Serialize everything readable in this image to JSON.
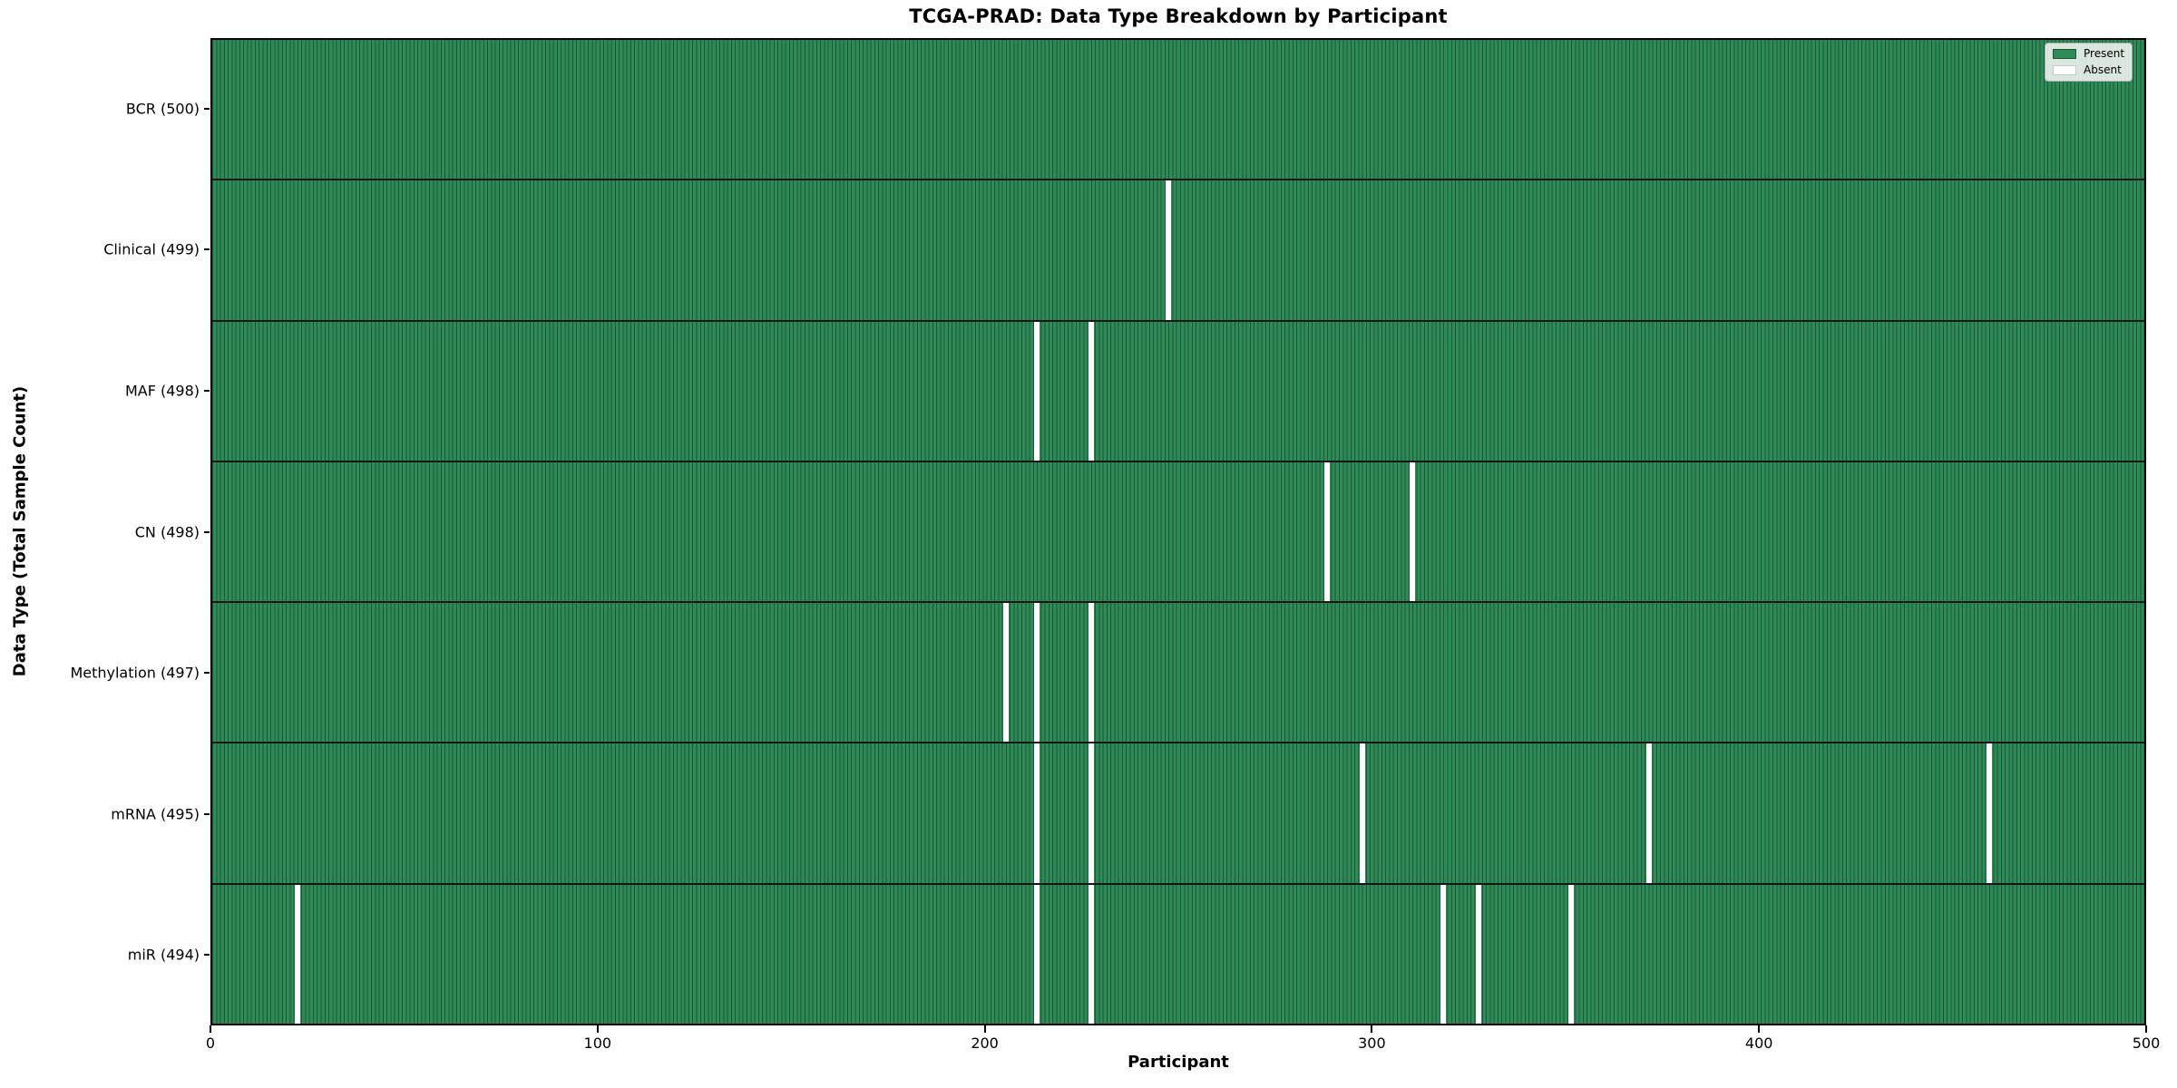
{
  "chart_data": {
    "type": "heatmap",
    "title": "TCGA-PRAD: Data Type Breakdown by Participant",
    "xlabel": "Participant",
    "ylabel": "Data Type (Total Sample Count)",
    "x_range": [
      0,
      500
    ],
    "x_ticks": [
      "0",
      "100",
      "200",
      "300",
      "400",
      "500"
    ],
    "n_participants": 500,
    "grid": false,
    "legend_position": "upper right",
    "legend": [
      {
        "label": "Present",
        "color": "#2e8b57"
      },
      {
        "label": "Absent",
        "color": "#ffffff"
      }
    ],
    "colors": {
      "present_fill": "#2e8b57",
      "cell_edge": "#1c5837",
      "absent_fill": "#ffffff",
      "row_separator": "#161616",
      "spine": "#000000"
    },
    "rows": [
      {
        "key": "bcr",
        "label": "BCR (500)",
        "present_count": 500,
        "absent_participants": []
      },
      {
        "key": "clinical",
        "label": "Clinical (499)",
        "present_count": 499,
        "absent_participants": [
          247
        ]
      },
      {
        "key": "maf",
        "label": "MAF (498)",
        "present_count": 498,
        "absent_participants": [
          213,
          227
        ]
      },
      {
        "key": "cn",
        "label": "CN (498)",
        "present_count": 498,
        "absent_participants": [
          288,
          310
        ]
      },
      {
        "key": "methylation",
        "label": "Methylation (497)",
        "present_count": 497,
        "absent_participants": [
          205,
          213,
          227
        ]
      },
      {
        "key": "mrna",
        "label": "mRNA (495)",
        "present_count": 495,
        "absent_participants": [
          213,
          227,
          297,
          371,
          459
        ]
      },
      {
        "key": "mir",
        "label": "miR (494)",
        "present_count": 494,
        "absent_participants": [
          22,
          213,
          227,
          318,
          327,
          351
        ]
      }
    ]
  }
}
